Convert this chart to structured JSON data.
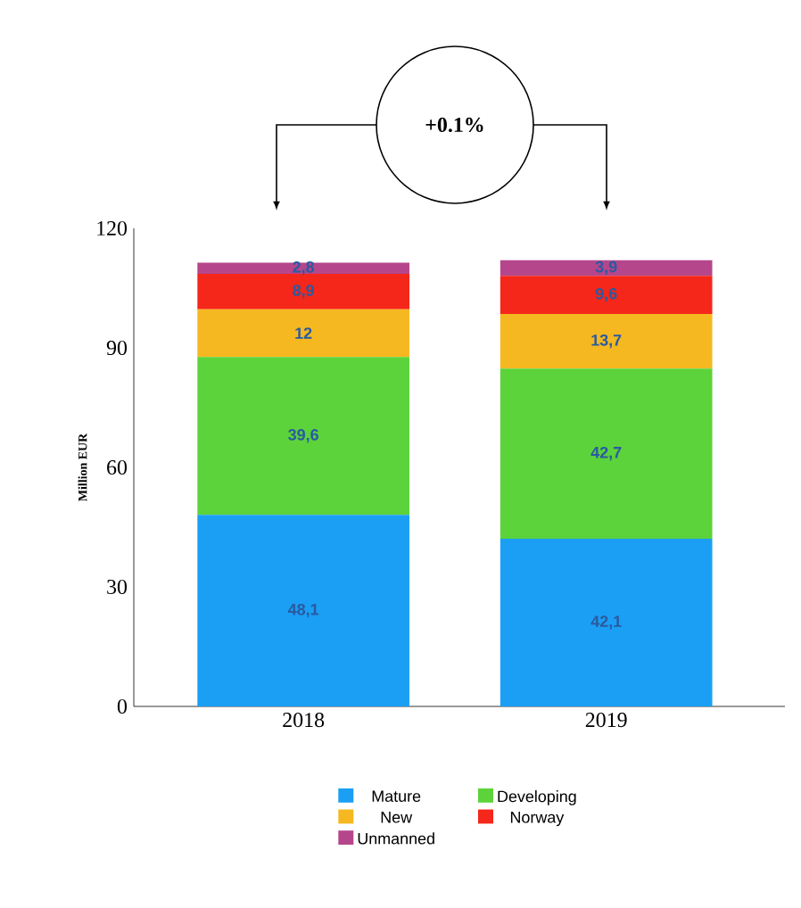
{
  "chart_data": {
    "type": "bar",
    "stacked": true,
    "categories": [
      "2018",
      "2019"
    ],
    "ylabel": "Million EUR",
    "ylim": [
      0,
      120
    ],
    "yticks": [
      0,
      30,
      60,
      90,
      120
    ],
    "legend": "bottom",
    "annotations": [
      "+0.1%"
    ],
    "series": [
      {
        "name": "Mature",
        "color": "#1a9ff5",
        "values": [
          48.1,
          42.1
        ],
        "value_labels": [
          "48,1",
          "42,1"
        ]
      },
      {
        "name": "Developing",
        "color": "#5cd33a",
        "values": [
          39.6,
          42.7
        ],
        "value_labels": [
          "39,6",
          "42,7"
        ]
      },
      {
        "name": "New",
        "color": "#f5b820",
        "values": [
          12,
          13.7
        ],
        "value_labels": [
          "12",
          "13,7"
        ]
      },
      {
        "name": "Norway",
        "color": "#f5261a",
        "values": [
          8.9,
          9.6
        ],
        "value_labels": [
          "8,9",
          "9,6"
        ]
      },
      {
        "name": "Unmanned",
        "color": "#b5468c",
        "values": [
          2.8,
          3.9
        ],
        "value_labels": [
          "2,8",
          "3,9"
        ]
      }
    ]
  }
}
